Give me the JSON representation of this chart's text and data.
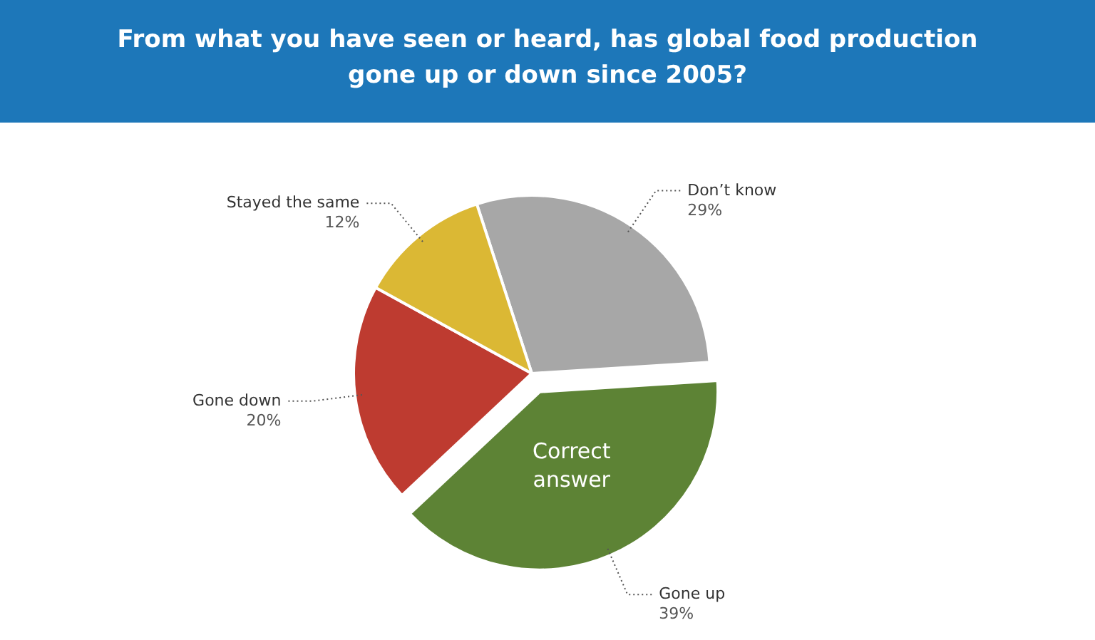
{
  "chart_data": {
    "type": "pie",
    "title": "From what you have seen or heard, has global food production gone up or down since 2005?",
    "categories": [
      "Don’t know",
      "Gone up",
      "Gone down",
      "Stayed the same"
    ],
    "values": [
      29,
      39,
      20,
      12
    ],
    "value_labels": [
      "29%",
      "39%",
      "20%",
      "12%"
    ],
    "colors": [
      "#a7a7a7",
      "#5d8335",
      "#be3b30",
      "#dbb834"
    ],
    "annotations": [
      {
        "text": "Correct answer",
        "x": "Gone up"
      }
    ]
  }
}
